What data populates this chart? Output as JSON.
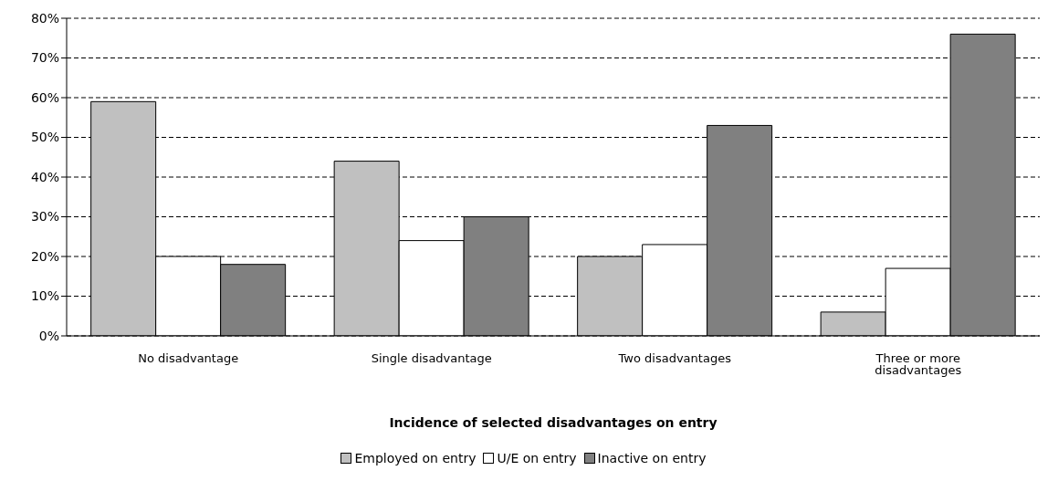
{
  "chart_data": {
    "type": "bar",
    "xlabel": "Incidence of selected disadvantages on entry",
    "categories": [
      "No disadvantage",
      "Single disadvantage",
      "Two disadvantages",
      "Three or more disadvantages"
    ],
    "series": [
      {
        "name": "Employed on entry",
        "color": "#c0c0c0",
        "values": [
          59,
          44,
          20,
          6
        ]
      },
      {
        "name": "U/E on entry",
        "color": "#ffffff",
        "values": [
          20,
          24,
          23,
          17
        ]
      },
      {
        "name": "Inactive on entry",
        "color": "#808080",
        "values": [
          18,
          30,
          53,
          76
        ]
      }
    ],
    "ylim": [
      0,
      80
    ],
    "yticks": [
      {
        "value": 0,
        "label": "0%"
      },
      {
        "value": 10,
        "label": "10%"
      },
      {
        "value": 20,
        "label": "20%"
      },
      {
        "value": 30,
        "label": "30%"
      },
      {
        "value": 40,
        "label": "40%"
      },
      {
        "value": 50,
        "label": "50%"
      },
      {
        "value": 60,
        "label": "60%"
      },
      {
        "value": 70,
        "label": "70%"
      },
      {
        "value": 80,
        "label": "80%"
      }
    ],
    "grid": "y",
    "legend": "bottom",
    "line_style": "dashed"
  }
}
